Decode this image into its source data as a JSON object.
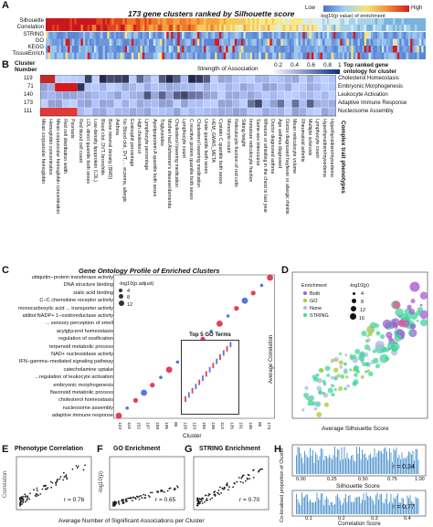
{
  "panels": {
    "A": {
      "letter": "A",
      "title": "173 gene clusters ranked by Silhouette score",
      "rows": [
        "Silhouette",
        "Correlation",
        "STRING",
        "GO",
        "KEGG",
        "TissueEnrich"
      ],
      "legend_title": "-log10(p value) of enrichment",
      "legend_low": "Low",
      "legend_high": "High"
    },
    "B": {
      "letter": "B",
      "cluster_header": "Cluster\nNumber",
      "strength_label": "Strength of Association",
      "strength_ticks": [
        "0.2",
        "0.4",
        "0.6",
        "0.8",
        "1"
      ],
      "right_header": "Top ranked gene\nontology for cluster",
      "clusters": [
        {
          "number": "119",
          "term": "Cholesterol Homeostasis"
        },
        {
          "number": "71",
          "term": "Embryonic Morphogenesis"
        },
        {
          "number": "140",
          "term": "Leukocyte Activation"
        },
        {
          "number": "173",
          "term": "Adaptive Immune Response"
        },
        {
          "number": "111",
          "term": "Nucleosome Assembly"
        }
      ],
      "phenotypes": [
        "Mean corpuscular hemoglobin",
        "Hemoglobin concentration",
        "Mean corpuscular hemoglobin concentration",
        "Red cell distribution width",
        "Psoriasis",
        "Red blood cell count",
        "LDL direct quantile both sexes",
        "Low-density lipoprotein (LDL)",
        "Blood clot, DVT, bronchitis",
        "Bone mineral density (BMD)",
        "Asthma",
        "No Blood clot, DVT, ... eczema, allergic",
        "Eosinophil percentage",
        "High cholesterol",
        "Lymphocyte percentage",
        "Apolipoprotein A quantile both sexes",
        "Triglycerides",
        "Mother had Alzheimer's disease/dementia",
        "Cholesterol lowering medication",
        "Lymphocyte count",
        "C reactive protein quantile both sexes",
        "Cholesterol lowering medication",
        "Urate quantile both sexes",
        "HEM_GWAS_META",
        "Cystatin C quantile both sexes",
        "Monocyte count",
        "Reticulocyte fraction of red cells",
        "Sitting height",
        "Immature reticulocyte fraction",
        "Same-sex intercourse",
        "Wheeze or whistling in the chest in last year",
        "Doctor diagnosed asthma",
        "Age asthma diagnosed",
        "Doctor diagnosed hayfever or allergic rhinitis",
        "Mean reticulocyte volume",
        "Rheumatoid arthritis",
        "Multiple sclerosis",
        "Lymphocyte count",
        "Hypothyroidism/myxedema",
        "Hypothyroidism/myxedema"
      ],
      "complex_trait_label": "Complex trait phenotypes"
    },
    "C": {
      "letter": "C",
      "title": "Gene Ontology Profile of Enriched Clusters",
      "size_title": "-log10(p.adjust)",
      "size_values": [
        "4",
        "8",
        "12"
      ],
      "terms": [
        "ubiquitin−protein transferase activity",
        "DNA structure binding",
        "sialic acid binding",
        "C−C chemokine receptor activity",
        "monocarboxylic acid ... transporter activity",
        "alditol:NADP+ 1−oxidoreductase activity",
        "... sensory perception of smell",
        "acylglycerol homeostasis",
        "regulation of ossification",
        "terpenoid metabolic process",
        "NAD+ nucleosidase activity",
        "IFN−gamma−mediated signaling pathway",
        "catecholamine uptake",
        "...regulation of leukocyte activation",
        "embryonic morphogenesis",
        "flavonoid metabolic process",
        "cholesterol homeostasis",
        "nucleosome assembly",
        "adaptive immune response"
      ],
      "inset_title": "Top 5 GO Terms",
      "xlabel": "Cluster",
      "xticks": [
        "123",
        "118",
        "152",
        "107",
        "158",
        "105",
        "95",
        "126",
        "120",
        "155",
        "106",
        "113",
        "135",
        "101",
        "145",
        "85",
        "170"
      ]
    },
    "D": {
      "letter": "D",
      "xlabel": "Average Silhouette Score",
      "ylabel": "Average Correlation",
      "enrichment_title": "Enrichment",
      "enrichment_items": [
        {
          "name": "Both",
          "color": "#a35cd6"
        },
        {
          "name": "GO",
          "color": "#a7cc2a"
        },
        {
          "name": "None",
          "color": "#aeb8e0"
        },
        {
          "name": "STRING",
          "color": "#40d79a"
        }
      ],
      "size_title": "-log10(p)",
      "size_values": [
        "4",
        "8",
        "12",
        "16"
      ]
    },
    "E": {
      "letter": "E",
      "title": "Phenotype Correlation",
      "ylabel": "Correlation",
      "r": "r = 0.76"
    },
    "F": {
      "letter": "F",
      "title": "GO Enrichment",
      "ylabel": "-log10(p)",
      "r": "r = 0.65"
    },
    "G": {
      "letter": "G",
      "title": "STRING Enrichment",
      "r": "r = 0.70"
    },
    "shared_xlabel": "Average Number of Significant Associations per Cluster",
    "H": {
      "letter": "H",
      "ylabel": "Co-localised proportion of Cluster",
      "top_xlabel": "Silhouette Score",
      "top_r": "r = 0.34",
      "top_ticks": [
        "0.00",
        "0.25",
        "0.50",
        "0.75",
        "1.00"
      ],
      "bottom_xlabel": "Correlation Score",
      "bottom_r": "r = 0.77",
      "bottom_ticks": [
        "0.1",
        "0.2",
        "0.3",
        "0.4"
      ]
    }
  },
  "colors": {
    "heat_low": "#2b4fa8",
    "heat_high": "#d7191c",
    "heat_mid": "#f6e98a",
    "both": "#a35cd6",
    "go": "#a7cc2a",
    "none": "#aeb8e0",
    "string": "#40d79a",
    "dot_red": "#e0415a",
    "dot_blue": "#5577dd"
  }
}
